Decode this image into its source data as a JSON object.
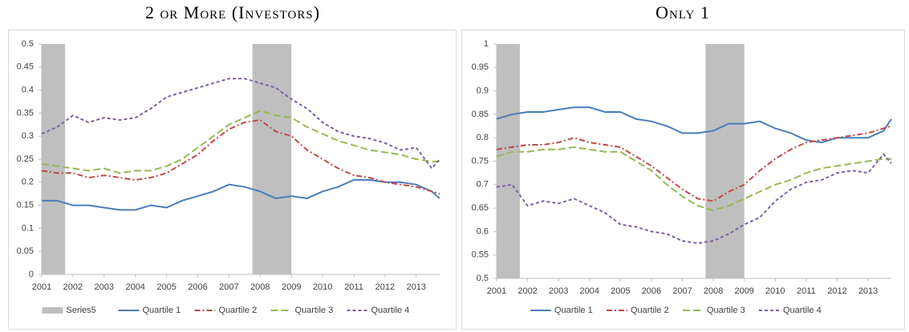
{
  "chart_data": [
    {
      "type": "line",
      "title": "2 or More (Investors)",
      "x": [
        2001,
        2001.5,
        2002,
        2002.5,
        2003,
        2003.5,
        2004,
        2004.5,
        2005,
        2005.5,
        2006,
        2006.5,
        2007,
        2007.5,
        2008,
        2008.5,
        2009,
        2009.5,
        2010,
        2010.5,
        2011,
        2011.5,
        2012,
        2012.5,
        2013,
        2013.5,
        2013.75
      ],
      "xlim": [
        2001,
        2013.75
      ],
      "xticks": [
        2001,
        2002,
        2003,
        2004,
        2005,
        2006,
        2007,
        2008,
        2009,
        2010,
        2011,
        2012,
        2013
      ],
      "ylim": [
        0,
        0.5
      ],
      "yticks": [
        0,
        0.05,
        0.1,
        0.15,
        0.2,
        0.25,
        0.3,
        0.35,
        0.4,
        0.45,
        0.5
      ],
      "bands": {
        "name": "Series5",
        "color": "#bfbfbf",
        "ranges": [
          [
            2001,
            2001.75
          ],
          [
            2007.75,
            2009
          ]
        ]
      },
      "legend": "bottom",
      "series": [
        {
          "name": "Quartile 1",
          "color": "#4a7ebb",
          "style": "solid",
          "values": [
            0.16,
            0.16,
            0.15,
            0.15,
            0.145,
            0.14,
            0.14,
            0.15,
            0.145,
            0.16,
            0.17,
            0.18,
            0.195,
            0.19,
            0.18,
            0.165,
            0.17,
            0.165,
            0.18,
            0.19,
            0.205,
            0.205,
            0.2,
            0.2,
            0.195,
            0.18,
            0.165
          ]
        },
        {
          "name": "Quartile 2",
          "color": "#be4b48",
          "style": "dash-dot",
          "values": [
            0.225,
            0.22,
            0.22,
            0.21,
            0.215,
            0.21,
            0.205,
            0.21,
            0.22,
            0.24,
            0.26,
            0.29,
            0.315,
            0.33,
            0.335,
            0.31,
            0.3,
            0.27,
            0.25,
            0.23,
            0.215,
            0.21,
            0.2,
            0.195,
            0.19,
            0.18,
            0.175
          ]
        },
        {
          "name": "Quartile 3",
          "color": "#98b954",
          "style": "long-dash",
          "values": [
            0.24,
            0.235,
            0.23,
            0.225,
            0.23,
            0.22,
            0.225,
            0.225,
            0.235,
            0.25,
            0.275,
            0.3,
            0.325,
            0.34,
            0.355,
            0.345,
            0.34,
            0.32,
            0.305,
            0.29,
            0.28,
            0.27,
            0.265,
            0.26,
            0.25,
            0.245,
            0.245
          ]
        },
        {
          "name": "Quartile 4",
          "color": "#7d60a0",
          "style": "dash",
          "values": [
            0.305,
            0.32,
            0.345,
            0.33,
            0.34,
            0.335,
            0.34,
            0.36,
            0.385,
            0.395,
            0.405,
            0.415,
            0.425,
            0.425,
            0.415,
            0.405,
            0.38,
            0.36,
            0.33,
            0.31,
            0.3,
            0.295,
            0.285,
            0.27,
            0.275,
            0.23,
            0.25
          ]
        }
      ]
    },
    {
      "type": "line",
      "title": "Only 1",
      "x": [
        2001,
        2001.5,
        2002,
        2002.5,
        2003,
        2003.5,
        2004,
        2004.5,
        2005,
        2005.5,
        2006,
        2006.5,
        2007,
        2007.5,
        2008,
        2008.5,
        2009,
        2009.5,
        2010,
        2010.5,
        2011,
        2011.5,
        2012,
        2012.5,
        2013,
        2013.5,
        2013.75
      ],
      "xlim": [
        2001,
        2013.75
      ],
      "xticks": [
        2001,
        2002,
        2003,
        2004,
        2005,
        2006,
        2007,
        2008,
        2009,
        2010,
        2011,
        2012,
        2013
      ],
      "ylim": [
        0.5,
        1
      ],
      "yticks": [
        0.5,
        0.55,
        0.6,
        0.65,
        0.7,
        0.75,
        0.8,
        0.85,
        0.9,
        0.95,
        1
      ],
      "bands": {
        "color": "#bfbfbf",
        "ranges": [
          [
            2001,
            2001.75
          ],
          [
            2007.75,
            2009
          ]
        ]
      },
      "legend": "bottom",
      "series": [
        {
          "name": "Quartile 1",
          "color": "#4a7ebb",
          "style": "solid",
          "values": [
            0.84,
            0.85,
            0.855,
            0.855,
            0.86,
            0.865,
            0.865,
            0.855,
            0.855,
            0.84,
            0.835,
            0.825,
            0.81,
            0.81,
            0.815,
            0.83,
            0.83,
            0.835,
            0.82,
            0.81,
            0.795,
            0.79,
            0.8,
            0.8,
            0.8,
            0.815,
            0.84
          ]
        },
        {
          "name": "Quartile 2",
          "color": "#be4b48",
          "style": "dash-dot",
          "values": [
            0.775,
            0.78,
            0.785,
            0.785,
            0.79,
            0.8,
            0.79,
            0.785,
            0.78,
            0.76,
            0.74,
            0.715,
            0.69,
            0.67,
            0.665,
            0.685,
            0.7,
            0.73,
            0.755,
            0.775,
            0.79,
            0.795,
            0.8,
            0.805,
            0.81,
            0.82,
            0.825
          ]
        },
        {
          "name": "Quartile 3",
          "color": "#98b954",
          "style": "long-dash",
          "values": [
            0.76,
            0.77,
            0.77,
            0.775,
            0.775,
            0.78,
            0.775,
            0.77,
            0.77,
            0.75,
            0.73,
            0.7,
            0.675,
            0.655,
            0.645,
            0.655,
            0.67,
            0.685,
            0.7,
            0.71,
            0.725,
            0.735,
            0.74,
            0.745,
            0.75,
            0.755,
            0.755
          ]
        },
        {
          "name": "Quartile 4",
          "color": "#7d60a0",
          "style": "dash",
          "values": [
            0.695,
            0.7,
            0.655,
            0.665,
            0.66,
            0.67,
            0.655,
            0.64,
            0.615,
            0.61,
            0.6,
            0.595,
            0.58,
            0.575,
            0.58,
            0.595,
            0.615,
            0.63,
            0.665,
            0.69,
            0.705,
            0.71,
            0.725,
            0.73,
            0.725,
            0.765,
            0.745
          ]
        }
      ]
    }
  ]
}
